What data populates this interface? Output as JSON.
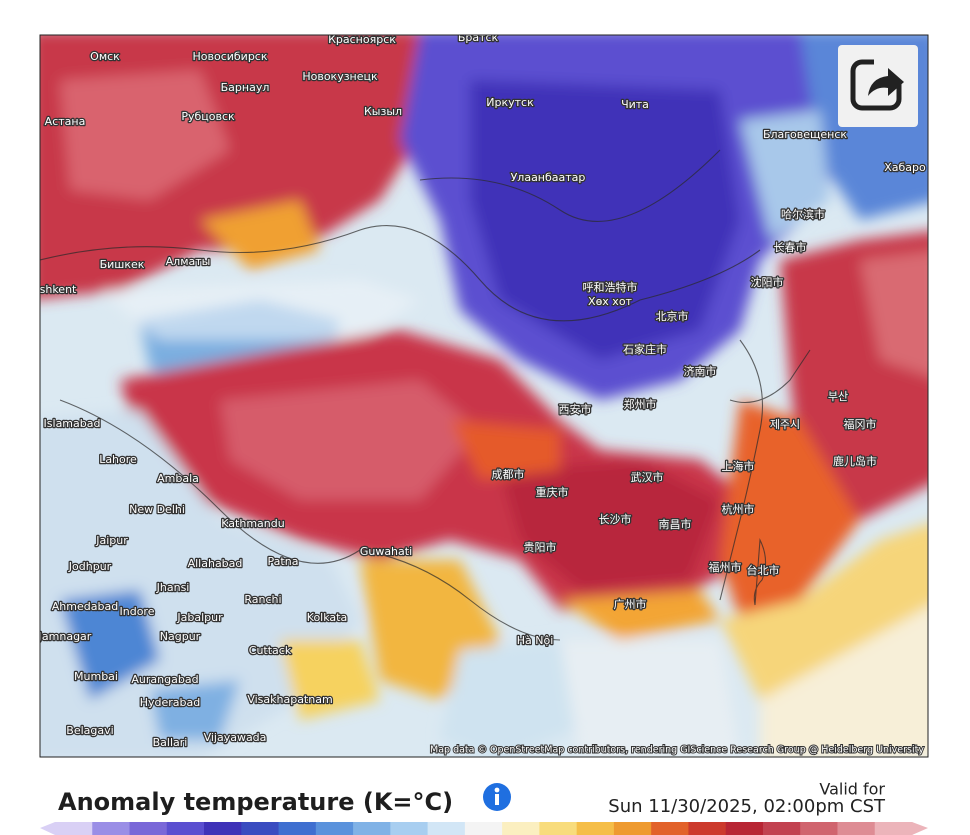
{
  "map": {
    "labels": [
      "Омск",
      "Новосибирск",
      "Красноярск",
      "Братск",
      "Барнаул",
      "Новокузнецк",
      "Астана",
      "Рубцовск",
      "Кызыл",
      "Иркутск",
      "Чита",
      "Благовещенск",
      "Хабаро",
      "Улаанбаатар",
      "Бишкек",
      "Алматы",
      "shkent",
      "呼和浩特市",
      "Хөх хот",
      "北京市",
      "沈阳市",
      "长春市",
      "哈尔滨市",
      "石家庄市",
      "济南市",
      "西安市",
      "郑州市",
      "成都市",
      "重庆市",
      "武汉市",
      "长沙市",
      "贵阳市",
      "南昌市",
      "杭州市",
      "上海市",
      "福州市",
      "台北市",
      "广州市",
      "Hà Nội",
      "Islamabad",
      "Lahore",
      "Ambala",
      "New Delhi",
      "Kathmandu",
      "Guwahati",
      "Jaipur",
      "Jodhpur",
      "Allahabad",
      "Patna",
      "Jhansi",
      "Ranchi",
      "Ahmedabad",
      "Indore",
      "Jabalpur",
      "Kolkata",
      "Jamnagar",
      "Nagpur",
      "Cuttack",
      "Mumbai",
      "Aurangabad",
      "Visakhapatnam",
      "Hyderabad",
      "Belagavi",
      "Vijayawada",
      "Ballari",
      "부산",
      "제주시",
      "福冈市",
      "鹿儿岛市"
    ],
    "attribution": "Map data © OpenStreetMap contributors, rendering GIScience Research Group @ Heidelberg University"
  },
  "legend": {
    "title": "Anomaly temperature (K=°C)",
    "valid_for": "Valid for",
    "valid_time": "Sun 11/30/2025, 02:00pm CST"
  }
}
